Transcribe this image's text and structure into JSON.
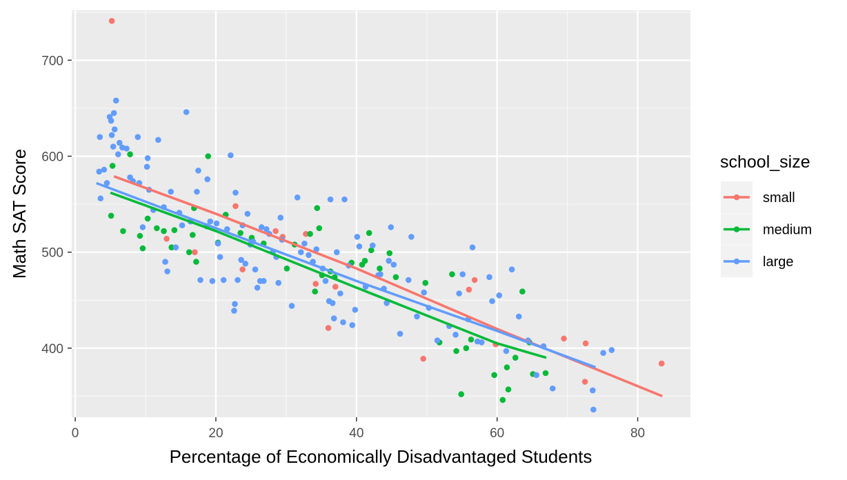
{
  "chart_data": {
    "type": "scatter",
    "xlabel": "Percentage of Economically Disadvantaged Students",
    "ylabel": "Math SAT Score",
    "xlim": [
      -0.5,
      87.5
    ],
    "ylim": [
      328,
      752
    ],
    "x_ticks": [
      0,
      20,
      40,
      60,
      80
    ],
    "x_tick_labels": [
      "0",
      "20",
      "40",
      "60",
      "80"
    ],
    "y_ticks": [
      400,
      500,
      600,
      700
    ],
    "y_tick_labels": [
      "400",
      "500",
      "600",
      "700"
    ],
    "grid": true,
    "legend": {
      "title": "school_size",
      "position": "right",
      "entries": [
        "small",
        "medium",
        "large"
      ]
    },
    "series": [
      {
        "name": "small",
        "color": "#F8766D",
        "points": [
          [
            5.2,
            741
          ],
          [
            13,
            514
          ],
          [
            17,
            500
          ],
          [
            22.8,
            548
          ],
          [
            23.8,
            482
          ],
          [
            28.5,
            522
          ],
          [
            29.5,
            516
          ],
          [
            32.8,
            519
          ],
          [
            34.2,
            467
          ],
          [
            36,
            421
          ],
          [
            37,
            464
          ],
          [
            49.5,
            389
          ],
          [
            56,
            461
          ],
          [
            56.8,
            471
          ],
          [
            59.8,
            404
          ],
          [
            69.5,
            410
          ],
          [
            72.5,
            365
          ],
          [
            72.6,
            405
          ],
          [
            83.4,
            384
          ]
        ],
        "trend": [
          [
            5.5,
            579
          ],
          [
            20,
            540
          ],
          [
            40,
            483
          ],
          [
            60,
            420
          ],
          [
            83.5,
            350
          ]
        ]
      },
      {
        "name": "medium",
        "color": "#00BA38",
        "points": [
          [
            5.3,
            590
          ],
          [
            5.1,
            538
          ],
          [
            6.8,
            522
          ],
          [
            7.8,
            602
          ],
          [
            9.2,
            517
          ],
          [
            9.6,
            504
          ],
          [
            10.3,
            535
          ],
          [
            11.6,
            525
          ],
          [
            12.6,
            522
          ],
          [
            13.7,
            505
          ],
          [
            14.1,
            523
          ],
          [
            16.2,
            500
          ],
          [
            16.7,
            518
          ],
          [
            16.9,
            546
          ],
          [
            17.2,
            490
          ],
          [
            18.7,
            527
          ],
          [
            18.9,
            600
          ],
          [
            20.3,
            510
          ],
          [
            21.4,
            539
          ],
          [
            23.5,
            520
          ],
          [
            25.1,
            515
          ],
          [
            26.8,
            509
          ],
          [
            30.1,
            483
          ],
          [
            31.2,
            508
          ],
          [
            33.4,
            519
          ],
          [
            34.1,
            459
          ],
          [
            34.4,
            546
          ],
          [
            34.7,
            525
          ],
          [
            35.1,
            476
          ],
          [
            36.3,
            480
          ],
          [
            36.9,
            474
          ],
          [
            39.3,
            489
          ],
          [
            40.8,
            487
          ],
          [
            41.2,
            491
          ],
          [
            41.8,
            520
          ],
          [
            42.1,
            502
          ],
          [
            43.3,
            483
          ],
          [
            44.7,
            499
          ],
          [
            45.6,
            474
          ],
          [
            49.8,
            468
          ],
          [
            51.8,
            406
          ],
          [
            53.6,
            477
          ],
          [
            54.2,
            397
          ],
          [
            54.9,
            352
          ],
          [
            55.6,
            400
          ],
          [
            56.3,
            409
          ],
          [
            59.6,
            372
          ],
          [
            60.8,
            346
          ],
          [
            61.4,
            380
          ],
          [
            61.6,
            357
          ],
          [
            62.6,
            390
          ],
          [
            63.6,
            459
          ],
          [
            64.6,
            406
          ],
          [
            65.1,
            373
          ],
          [
            66.9,
            374
          ]
        ],
        "trend": [
          [
            5,
            562
          ],
          [
            20,
            522
          ],
          [
            40,
            463
          ],
          [
            60,
            405
          ],
          [
            67,
            390
          ]
        ]
      },
      {
        "name": "large",
        "color": "#619CFF",
        "points": [
          [
            3.4,
            584
          ],
          [
            3.5,
            620
          ],
          [
            3.6,
            556
          ],
          [
            4.1,
            586
          ],
          [
            4.5,
            572
          ],
          [
            4.9,
            641
          ],
          [
            5.1,
            637
          ],
          [
            5.2,
            622
          ],
          [
            5.4,
            610
          ],
          [
            5.6,
            628
          ],
          [
            5.5,
            645
          ],
          [
            5.8,
            658
          ],
          [
            6.1,
            602
          ],
          [
            6.3,
            614
          ],
          [
            6.7,
            609
          ],
          [
            7.3,
            608
          ],
          [
            7.8,
            578
          ],
          [
            8.2,
            574
          ],
          [
            8.9,
            620
          ],
          [
            9.1,
            572
          ],
          [
            9.6,
            526
          ],
          [
            10.2,
            589
          ],
          [
            10.3,
            598
          ],
          [
            10.5,
            565
          ],
          [
            11.1,
            544
          ],
          [
            11.8,
            617
          ],
          [
            12.6,
            547
          ],
          [
            12.8,
            490
          ],
          [
            13.1,
            480
          ],
          [
            13.6,
            563
          ],
          [
            14.3,
            505
          ],
          [
            14.8,
            541
          ],
          [
            15.2,
            528
          ],
          [
            15.8,
            646
          ],
          [
            16.4,
            532
          ],
          [
            17.3,
            563
          ],
          [
            17.5,
            585
          ],
          [
            17.8,
            471
          ],
          [
            18.8,
            576
          ],
          [
            19.2,
            532
          ],
          [
            19.5,
            470
          ],
          [
            20.1,
            530
          ],
          [
            20.3,
            509
          ],
          [
            20.6,
            495
          ],
          [
            21.1,
            471
          ],
          [
            21.6,
            524
          ],
          [
            22.1,
            601
          ],
          [
            22.6,
            439
          ],
          [
            22.7,
            446
          ],
          [
            22.8,
            562
          ],
          [
            23.1,
            471
          ],
          [
            23.6,
            492
          ],
          [
            23.8,
            528
          ],
          [
            24.2,
            488
          ],
          [
            24.5,
            540
          ],
          [
            24.9,
            508
          ],
          [
            25.3,
            511
          ],
          [
            25.6,
            482
          ],
          [
            25.9,
            463
          ],
          [
            26.3,
            470
          ],
          [
            26.5,
            526
          ],
          [
            26.8,
            470
          ],
          [
            27.2,
            524
          ],
          [
            27.6,
            519
          ],
          [
            28.1,
            500
          ],
          [
            28.6,
            495
          ],
          [
            28.9,
            468
          ],
          [
            29.2,
            536
          ],
          [
            29.4,
            513
          ],
          [
            30.8,
            444
          ],
          [
            31.6,
            557
          ],
          [
            32.1,
            500
          ],
          [
            32.6,
            509
          ],
          [
            33.2,
            497
          ],
          [
            33.8,
            490
          ],
          [
            34.3,
            503
          ],
          [
            35.2,
            483
          ],
          [
            35.6,
            470
          ],
          [
            36.1,
            449
          ],
          [
            36.3,
            555
          ],
          [
            36.6,
            447
          ],
          [
            36.8,
            431
          ],
          [
            37.2,
            500
          ],
          [
            37.7,
            457
          ],
          [
            38.1,
            427
          ],
          [
            38.3,
            555
          ],
          [
            38.9,
            486
          ],
          [
            39.4,
            424
          ],
          [
            39.8,
            440
          ],
          [
            40.1,
            516
          ],
          [
            40.4,
            506
          ],
          [
            41.3,
            464
          ],
          [
            42.3,
            507
          ],
          [
            43.1,
            476
          ],
          [
            43.4,
            477
          ],
          [
            43.9,
            462
          ],
          [
            44.3,
            447
          ],
          [
            44.6,
            491
          ],
          [
            44.9,
            526
          ],
          [
            45.3,
            487
          ],
          [
            46.2,
            415
          ],
          [
            47.4,
            471
          ],
          [
            47.8,
            516
          ],
          [
            48.6,
            433
          ],
          [
            49.6,
            458
          ],
          [
            50.3,
            442
          ],
          [
            51.5,
            408
          ],
          [
            53.2,
            423
          ],
          [
            54.1,
            414
          ],
          [
            54.6,
            457
          ],
          [
            55.1,
            477
          ],
          [
            55.9,
            430
          ],
          [
            56.5,
            505
          ],
          [
            57.2,
            407
          ],
          [
            57.8,
            406
          ],
          [
            58.9,
            474
          ],
          [
            59.3,
            449
          ],
          [
            60.3,
            455
          ],
          [
            61.3,
            397
          ],
          [
            62.1,
            482
          ],
          [
            63.1,
            433
          ],
          [
            64.4,
            408
          ],
          [
            65.6,
            372
          ],
          [
            66.6,
            402
          ],
          [
            67.9,
            358
          ],
          [
            73.6,
            356
          ],
          [
            73.7,
            336
          ],
          [
            75.1,
            395
          ],
          [
            76.3,
            398
          ]
        ],
        "trend": [
          [
            3,
            572
          ],
          [
            20,
            525
          ],
          [
            40,
            470
          ],
          [
            60,
            418
          ],
          [
            74,
            380
          ]
        ]
      }
    ]
  }
}
